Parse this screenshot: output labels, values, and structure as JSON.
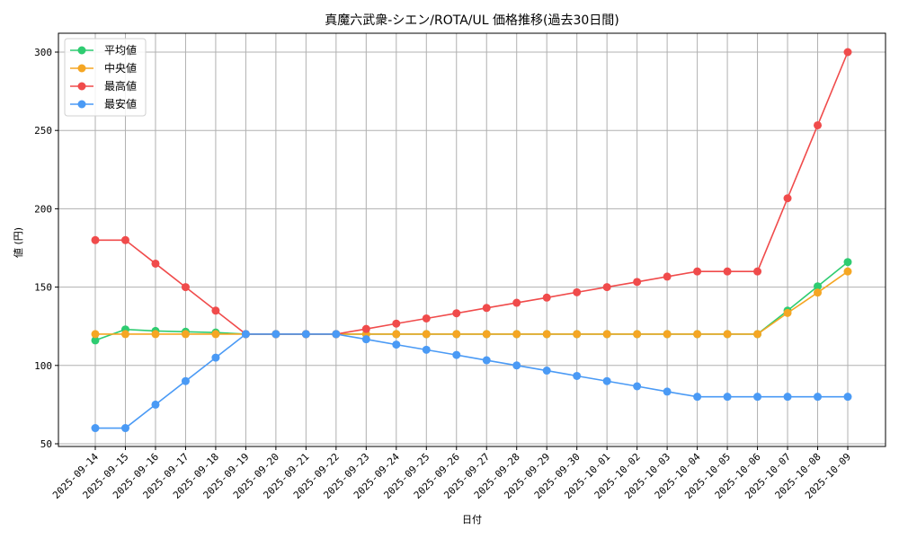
{
  "chart_data": {
    "type": "line",
    "title": "真魔六武衆-シエン/ROTA/UL 価格推移(過去30日間)",
    "xlabel": "日付",
    "ylabel": "値 (円)",
    "ylim": [
      48,
      312
    ],
    "yticks": [
      50,
      100,
      150,
      200,
      250,
      300
    ],
    "grid": true,
    "legend_position": "upper left",
    "x": [
      "2025-09-14",
      "2025-09-15",
      "2025-09-16",
      "2025-09-17",
      "2025-09-18",
      "2025-09-19",
      "2025-09-20",
      "2025-09-21",
      "2025-09-22",
      "2025-09-23",
      "2025-09-24",
      "2025-09-25",
      "2025-09-26",
      "2025-09-27",
      "2025-09-28",
      "2025-09-29",
      "2025-09-30",
      "2025-10-01",
      "2025-10-02",
      "2025-10-03",
      "2025-10-04",
      "2025-10-05",
      "2025-10-06",
      "2025-10-07",
      "2025-10-08",
      "2025-10-09"
    ],
    "series": [
      {
        "name": "平均値",
        "color": "#2ecc71",
        "values": [
          116,
          123,
          122,
          121.5,
          121,
          120,
          120,
          120,
          120,
          120,
          120,
          120,
          120,
          120,
          120,
          120,
          120,
          120,
          120,
          120,
          120,
          120,
          120,
          135,
          150.5,
          166
        ]
      },
      {
        "name": "中央値",
        "color": "#f5a623",
        "values": [
          120,
          120,
          120,
          120,
          120,
          120,
          120,
          120,
          120,
          120,
          120,
          120,
          120,
          120,
          120,
          120,
          120,
          120,
          120,
          120,
          120,
          120,
          120,
          133.5,
          146.5,
          160
        ]
      },
      {
        "name": "最高値",
        "color": "#f04b4b",
        "values": [
          180,
          180,
          165,
          150,
          135,
          120,
          120,
          120,
          120,
          123.3,
          126.7,
          130,
          133.3,
          136.7,
          140,
          143.3,
          146.7,
          150,
          153.3,
          156.7,
          160,
          160,
          160,
          206.7,
          253.3,
          300
        ]
      },
      {
        "name": "最安値",
        "color": "#4a9af5",
        "values": [
          60,
          60,
          75,
          90,
          105,
          120,
          120,
          120,
          120,
          116.7,
          113.3,
          110,
          106.7,
          103.3,
          100,
          96.7,
          93.3,
          90,
          86.7,
          83.3,
          80,
          80,
          80,
          80,
          80,
          80
        ]
      }
    ]
  }
}
